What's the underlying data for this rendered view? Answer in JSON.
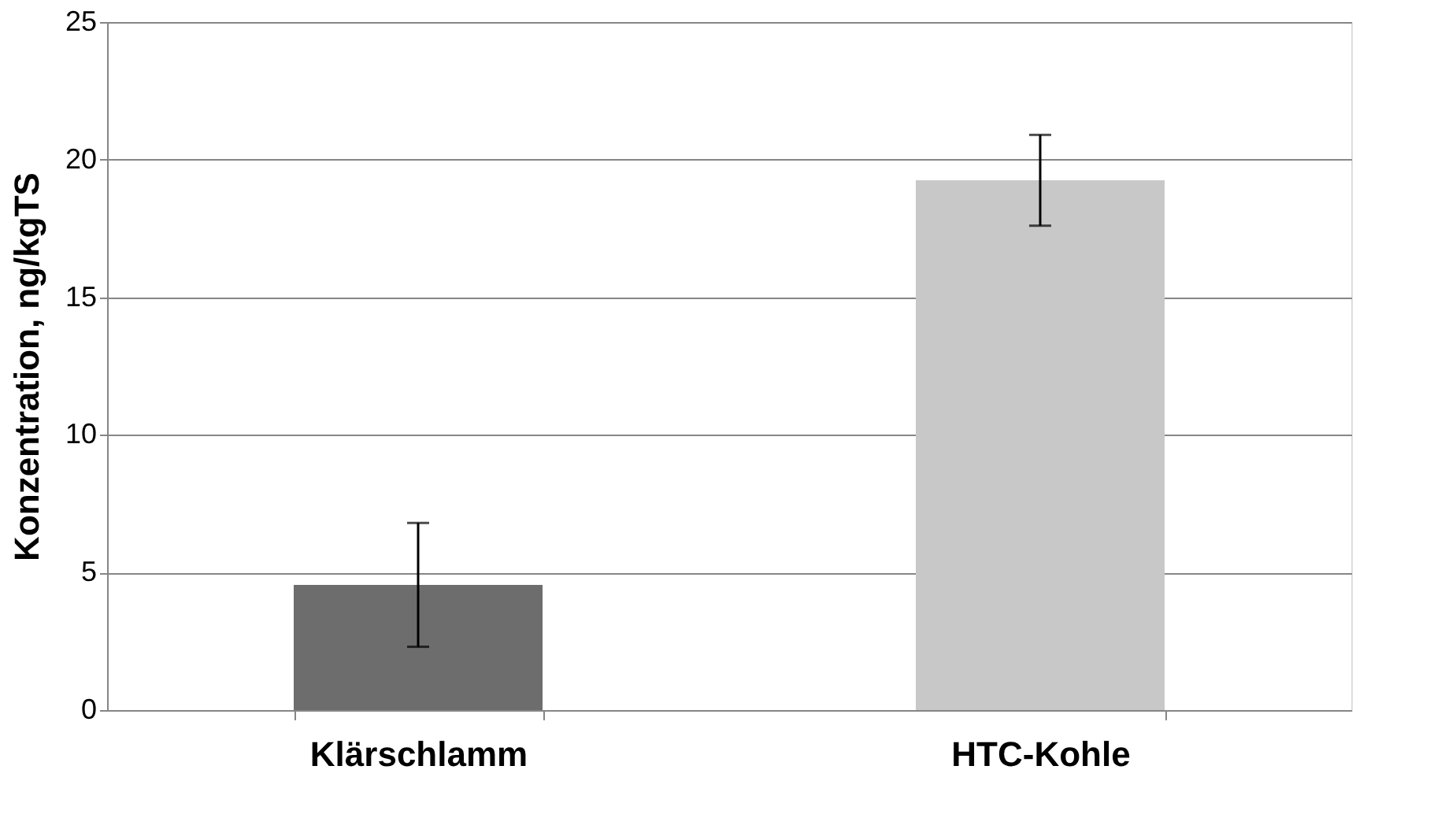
{
  "chart_data": {
    "type": "bar",
    "ylabel": "Konzentration, ng/kgTS",
    "categories": [
      "Klärschlamm",
      "HTC-Kohle"
    ],
    "values": [
      4.55,
      19.25
    ],
    "colors": [
      "#6d6d6d",
      "#c8c8c8"
    ],
    "errors": [
      2.25,
      1.65
    ],
    "ylim": [
      0,
      25
    ],
    "yticks": [
      0,
      5,
      10,
      15,
      20,
      25
    ],
    "grid": "y"
  }
}
